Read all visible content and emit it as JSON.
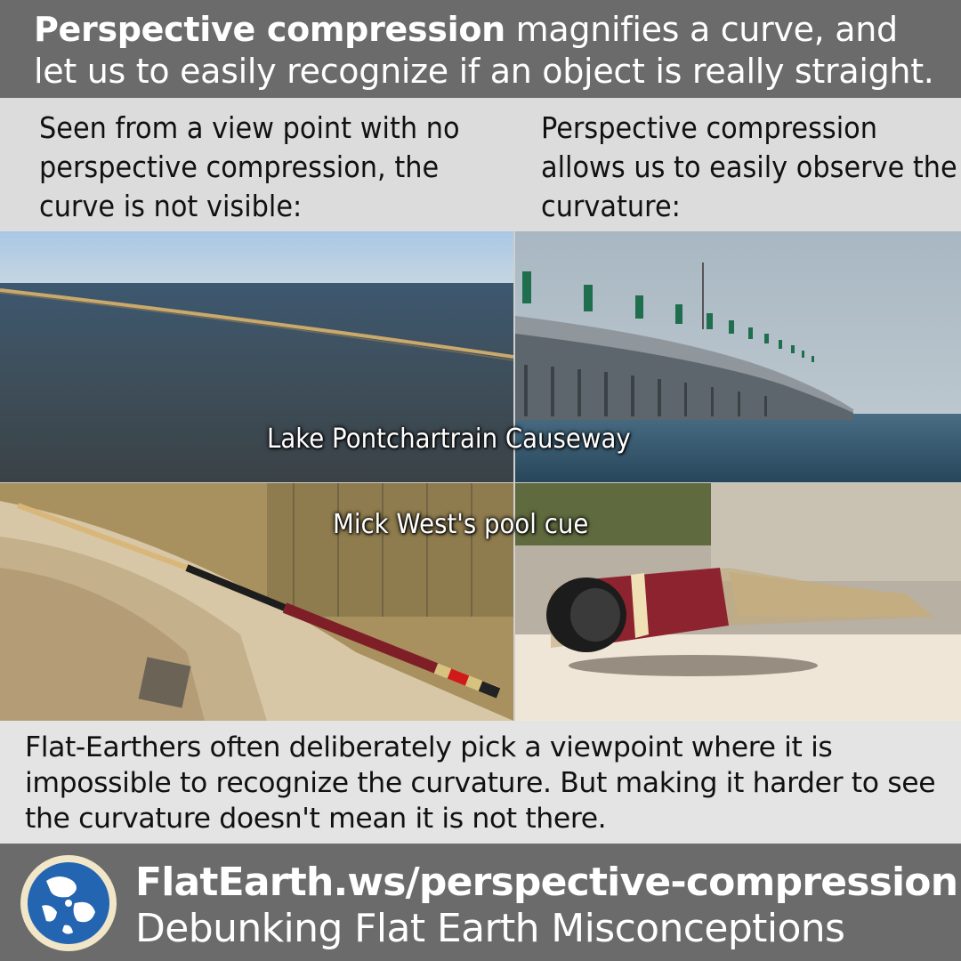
{
  "header": {
    "bold": "Perspective compression",
    "rest": " magnifies a curve, and let us to easily recognize if an object is really straight."
  },
  "captions": {
    "left": "Seen from a view point with no perspective compression, the curve is not visible:",
    "right": "Perspective compression allows us to easily observe the curvature:"
  },
  "labels": {
    "lake": "Lake Pontchartrain Causeway",
    "cue": "Mick West's pool cue"
  },
  "bottom_text": "Flat-Earthers often deliberately pick a viewpoint where it is impossible to recognize the curvature. But making it harder to see the curvature doesn't mean it is not there.",
  "footer": {
    "url": "FlatEarth.ws/perspective-compression",
    "tagline": "Debunking Flat Earth Misconceptions"
  },
  "icons": {
    "logo": "globe-logo-icon"
  }
}
